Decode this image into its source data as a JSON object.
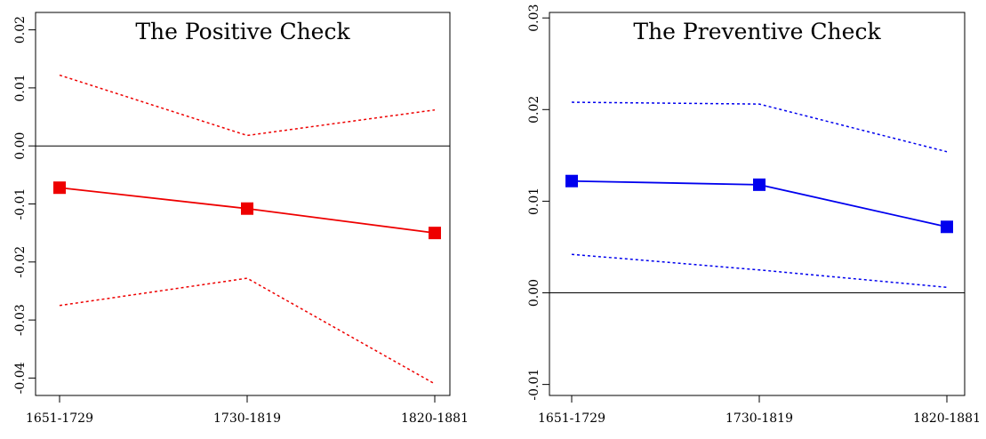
{
  "chart_data": [
    {
      "type": "line",
      "title": "The Positive Check",
      "xlabel": "",
      "ylabel": "",
      "categories": [
        "1651-1729",
        "1730-1819",
        "1820-1881"
      ],
      "ylim": [
        -0.043,
        0.023
      ],
      "yticks": [
        "-0.04",
        "-0.03",
        "-0.02",
        "-0.01",
        "0.00",
        "0.01",
        "0.02"
      ],
      "yticks_values": [
        -0.04,
        -0.03,
        -0.02,
        -0.01,
        0.0,
        0.01,
        0.02
      ],
      "reference_line": 0.0,
      "grid": false,
      "color": "#ee0000",
      "series": [
        {
          "role": "estimate",
          "style": "solid-markers",
          "values": [
            -0.0072,
            -0.0108,
            -0.015
          ]
        },
        {
          "role": "upper-band",
          "style": "dotted",
          "values": [
            0.0122,
            0.0018,
            0.0062
          ]
        },
        {
          "role": "lower-band",
          "style": "dotted",
          "values": [
            -0.0275,
            -0.0228,
            -0.041
          ]
        }
      ]
    },
    {
      "type": "line",
      "title": "The Preventive Check",
      "xlabel": "",
      "ylabel": "",
      "categories": [
        "1651-1729",
        "1730-1819",
        "1820-1881"
      ],
      "ylim": [
        -0.0112,
        0.0306
      ],
      "yticks": [
        "-0.01",
        "0.00",
        "0.01",
        "0.02",
        "0.03"
      ],
      "yticks_values": [
        -0.01,
        0.0,
        0.01,
        0.02,
        0.03
      ],
      "reference_line": 0.0,
      "grid": false,
      "color": "#0000ee",
      "series": [
        {
          "role": "estimate",
          "style": "solid-markers",
          "values": [
            0.0122,
            0.0118,
            0.0072
          ]
        },
        {
          "role": "upper-band",
          "style": "dotted",
          "values": [
            0.0208,
            0.0206,
            0.0154
          ]
        },
        {
          "role": "lower-band",
          "style": "dotted",
          "values": [
            0.0042,
            0.0025,
            0.0006
          ]
        }
      ]
    }
  ]
}
